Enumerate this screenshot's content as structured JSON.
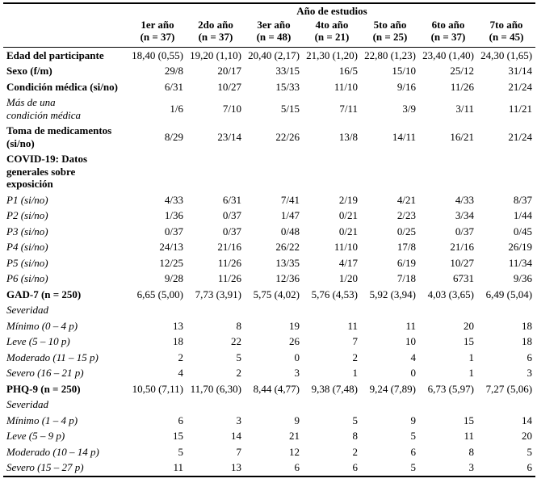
{
  "table": {
    "spanner": "Año de estudios",
    "columns": [
      {
        "label": "1er año",
        "n": "(n = 37)"
      },
      {
        "label": "2do año",
        "n": "(n = 37)"
      },
      {
        "label": "3er año",
        "n": "(n = 48)"
      },
      {
        "label": "4to año",
        "n": "(n = 21)"
      },
      {
        "label": "5to año",
        "n": "(n = 25)"
      },
      {
        "label": "6to año",
        "n": "(n = 37)"
      },
      {
        "label": "7to año",
        "n": "(n = 45)"
      }
    ],
    "rows": [
      {
        "label": "Edad del participante",
        "style": "bold",
        "values": [
          "18,40 (0,55)",
          "19,20 (1,10)",
          "20,40 (2,17)",
          "21,30 (1,20)",
          "22,80 (1,23)",
          "23,40 (1,40)",
          "24,30 (1,65)"
        ]
      },
      {
        "label": "Sexo (f/m)",
        "style": "bold",
        "values": [
          "29/8",
          "20/17",
          "33/15",
          "16/5",
          "15/10",
          "25/12",
          "31/14"
        ]
      },
      {
        "label": "Condición médica (si/no)",
        "style": "bold",
        "values": [
          "6/31",
          "10/27",
          "15/33",
          "11/10",
          "9/16",
          "11/26",
          "21/24"
        ]
      },
      {
        "label": "Más de una\ncondición médica",
        "style": "italic-2",
        "values": [
          "1/6",
          "7/10",
          "5/15",
          "7/11",
          "3/9",
          "3/11",
          "11/21"
        ]
      },
      {
        "label": "Toma de medicamentos\n(si/no)",
        "style": "bold",
        "values": [
          "8/29",
          "23/14",
          "22/26",
          "13/8",
          "14/11",
          "16/21",
          "21/24"
        ]
      },
      {
        "label": "COVID-19: Datos\ngenerales sobre\nexposición",
        "style": "bold",
        "values": [
          "",
          "",
          "",
          "",
          "",
          "",
          ""
        ]
      },
      {
        "label": "P1 (si/no)",
        "style": "italic-1",
        "values": [
          "4/33",
          "6/31",
          "7/41",
          "2/19",
          "4/21",
          "4/33",
          "8/37"
        ]
      },
      {
        "label": "P2 (si/no)",
        "style": "italic-1",
        "values": [
          "1/36",
          "0/37",
          "1/47",
          "0/21",
          "2/23",
          "3/34",
          "1/44"
        ]
      },
      {
        "label": "P3 (si/no)",
        "style": "italic-1",
        "values": [
          "0/37",
          "0/37",
          "0/48",
          "0/21",
          "0/25",
          "0/37",
          "0/45"
        ]
      },
      {
        "label": "P4 (si/no)",
        "style": "italic-1",
        "values": [
          "24/13",
          "21/16",
          "26/22",
          "11/10",
          "17/8",
          "21/16",
          "26/19"
        ]
      },
      {
        "label": "P5 (si/no)",
        "style": "italic-1",
        "values": [
          "12/25",
          "11/26",
          "13/35",
          "4/17",
          "6/19",
          "10/27",
          "11/34"
        ]
      },
      {
        "label": "P6 (si/no)",
        "style": "italic-1",
        "values": [
          "9/28",
          "11/26",
          "12/36",
          "1/20",
          "7/18",
          "6731",
          "9/36"
        ]
      },
      {
        "label": "GAD-7 (n = 250)",
        "style": "bold",
        "values": [
          "6,65 (5,00)",
          "7,73 (3,91)",
          "5,75 (4,02)",
          "5,76 (4,53)",
          "5,92 (3,94)",
          "4,03 (3,65)",
          "6,49 (5,04)"
        ]
      },
      {
        "label": "Severidad",
        "style": "italic-1",
        "values": [
          "",
          "",
          "",
          "",
          "",
          "",
          ""
        ]
      },
      {
        "label": "Mínimo (0 – 4 p)",
        "style": "italic-2",
        "values": [
          "13",
          "8",
          "19",
          "11",
          "11",
          "20",
          "18"
        ]
      },
      {
        "label": "Leve (5 – 10 p)",
        "style": "italic-2",
        "values": [
          "18",
          "22",
          "26",
          "7",
          "10",
          "15",
          "18"
        ]
      },
      {
        "label": "Moderado (11 – 15 p)",
        "style": "italic-2",
        "values": [
          "2",
          "5",
          "0",
          "2",
          "4",
          "1",
          "6"
        ]
      },
      {
        "label": "Severo (16 – 21 p)",
        "style": "italic-2",
        "values": [
          "4",
          "2",
          "3",
          "1",
          "0",
          "1",
          "3"
        ]
      },
      {
        "label": "PHQ-9 (n = 250)",
        "style": "bold",
        "values": [
          "10,50 (7,11)",
          "11,70 (6,30)",
          "8,44 (4,77)",
          "9,38 (7,48)",
          "9,24 (7,89)",
          "6,73 (5,97)",
          "7,27 (5,06)"
        ]
      },
      {
        "label": "Severidad",
        "style": "italic-1",
        "values": [
          "",
          "",
          "",
          "",
          "",
          "",
          ""
        ]
      },
      {
        "label": "Mínimo (1 – 4 p)",
        "style": "italic-2",
        "values": [
          "6",
          "3",
          "9",
          "5",
          "9",
          "15",
          "14"
        ]
      },
      {
        "label": "Leve (5 – 9 p)",
        "style": "italic-2",
        "values": [
          "15",
          "14",
          "21",
          "8",
          "5",
          "11",
          "20"
        ]
      },
      {
        "label": "Moderado (10 – 14 p)",
        "style": "italic-2",
        "values": [
          "5",
          "7",
          "12",
          "2",
          "6",
          "8",
          "5"
        ]
      },
      {
        "label": "Severo (15 – 27 p)",
        "style": "italic-2",
        "values": [
          "11",
          "13",
          "6",
          "6",
          "5",
          "3",
          "6"
        ]
      }
    ]
  }
}
